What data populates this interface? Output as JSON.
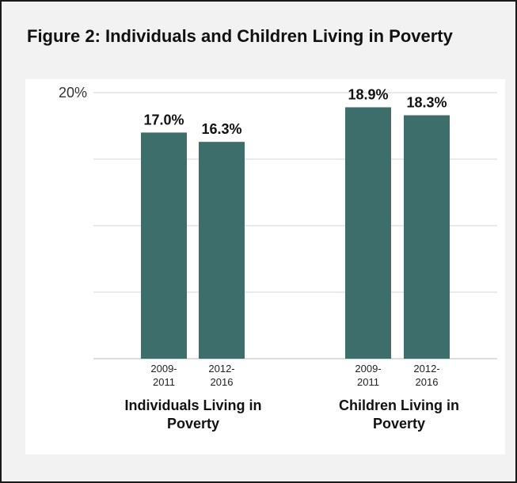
{
  "chart_data": {
    "type": "bar",
    "title": "Figure 2: Individuals and Children Living in Poverty",
    "groups": [
      "Individuals Living in Poverty",
      "Children Living in Poverty"
    ],
    "categories": [
      "2009-2011",
      "2012-2016"
    ],
    "series": [
      {
        "group": "Individuals Living in Poverty",
        "values": [
          17.0,
          16.3
        ]
      },
      {
        "group": "Children Living in Poverty",
        "values": [
          18.9,
          18.3
        ]
      }
    ],
    "data_labels": [
      [
        "17.0%",
        "16.3%"
      ],
      [
        "18.9%",
        "18.3%"
      ]
    ],
    "y_tick_label": "20%",
    "y_max_tick": 20,
    "ylim": [
      0,
      20
    ],
    "grid": true,
    "bar_color": "#3d6e6c"
  }
}
